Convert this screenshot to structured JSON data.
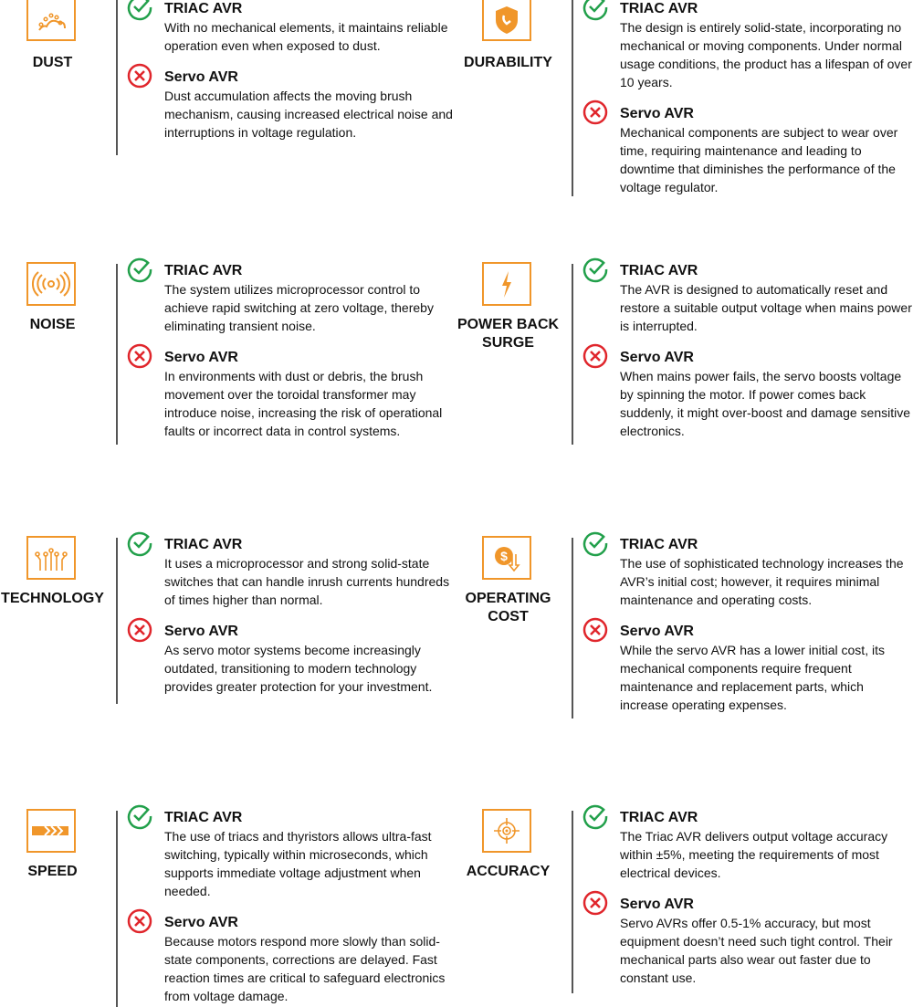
{
  "colors": {
    "accent": "#f0962a",
    "good": "#22a04b",
    "bad": "#e0262c"
  },
  "labels": {
    "triac": "TRIAC AVR",
    "servo": "Servo AVR"
  },
  "features": [
    {
      "name": "DUST",
      "icon": "dust-icon",
      "triac": "With no mechanical elements, it maintains reliable operation even when exposed to dust.",
      "servo": "Dust accumulation affects the moving brush mechanism, causing increased electrical noise and interruptions in voltage regulation."
    },
    {
      "name": "DURABILITY",
      "icon": "shield-icon",
      "triac": "The design is entirely solid-state, incorporating no mechanical or moving components. Under normal usage conditions, the product has a lifespan of over 10 years.",
      "servo": "Mechanical components are subject to wear over time, requiring maintenance and leading to downtime that diminishes the performance of the voltage regulator."
    },
    {
      "name": "NOISE",
      "icon": "signal-waves-icon",
      "triac": "The system utilizes microprocessor control to achieve rapid switching at zero voltage, thereby eliminating transient noise.",
      "servo": "In environments with dust or debris, the brush movement over the toroidal transformer may introduce noise, increasing the risk of operational faults or incorrect data in control systems."
    },
    {
      "name": "POWER BACK SURGE",
      "icon": "lightning-icon",
      "triac": "The AVR is designed to automatically reset and restore a suitable output voltage when mains power is interrupted.",
      "servo": "When mains power fails, the servo boosts voltage by spinning the motor. If power comes back suddenly, it might over-boost and damage sensitive electronics."
    },
    {
      "name": "TECHNOLOGY",
      "icon": "circuit-icon",
      "triac": "It uses a microprocessor and strong solid-state switches that can handle inrush currents hundreds of times higher than normal.",
      "servo": "As servo motor systems become increasingly outdated, transitioning to modern technology provides greater protection for your investment."
    },
    {
      "name": "OPERATING COST",
      "icon": "dollar-down-icon",
      "triac": "The use of sophisticated technology increases the AVR’s initial cost; however, it requires minimal maintenance and operating costs.",
      "servo": "While the servo AVR has a lower initial cost, its mechanical components require frequent maintenance and replacement parts, which increase operating expenses."
    },
    {
      "name": "SPEED",
      "icon": "fast-forward-icon",
      "triac": "The use of triacs and thyristors allows ultra-fast switching, typically within microseconds, which supports immediate voltage adjustment when needed.",
      "servo": "Because motors respond more slowly than solid-state components, corrections are delayed. Fast reaction times are critical to safeguard electronics from voltage damage."
    },
    {
      "name": "ACCURACY",
      "icon": "target-icon",
      "triac": "The Triac AVR delivers output voltage accuracy within ±5%, meeting the requirements of most electrical devices.",
      "servo": "Servo AVRs offer 0.5-1% accuracy, but most equipment doesn’t need such tight control. Their mechanical parts also wear out faster due to constant use."
    }
  ]
}
